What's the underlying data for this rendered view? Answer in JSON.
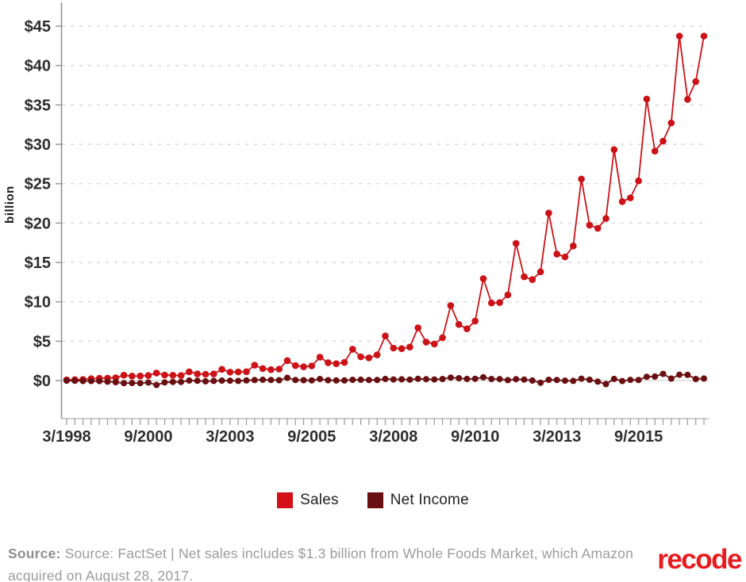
{
  "chart": {
    "y_axis": {
      "label": "billion",
      "tick_values": [
        0,
        5,
        10,
        15,
        20,
        25,
        30,
        35,
        40,
        45
      ],
      "tick_labels": [
        "$0",
        "$5",
        "$10",
        "$15",
        "$20",
        "$25",
        "$30",
        "$35",
        "$40",
        "$45"
      ]
    },
    "x_axis": {
      "shown_tick_labels": [
        "3/1998",
        "9/2000",
        "3/2003",
        "9/2005",
        "3/2008",
        "9/2010",
        "3/2013",
        "9/2015"
      ],
      "label_every_n_quarters": 10
    },
    "colors": {
      "grid": "#d9d9d9",
      "zero_line": "#cfcfcf",
      "axis": "#8c8c8c",
      "tick": "#999999",
      "tick_text": "#2d2d2d"
    }
  },
  "chart_data": {
    "type": "line",
    "title": "",
    "xlabel": "",
    "ylabel": "billion",
    "ylim": [
      0,
      45
    ],
    "grid": "dashed horizontal",
    "legend_position": "bottom",
    "x": [
      "3/1998",
      "6/1998",
      "9/1998",
      "12/1998",
      "3/1999",
      "6/1999",
      "9/1999",
      "12/1999",
      "3/2000",
      "6/2000",
      "9/2000",
      "12/2000",
      "3/2001",
      "6/2001",
      "9/2001",
      "12/2001",
      "3/2002",
      "6/2002",
      "9/2002",
      "12/2002",
      "3/2003",
      "6/2003",
      "9/2003",
      "12/2003",
      "3/2004",
      "6/2004",
      "9/2004",
      "12/2004",
      "3/2005",
      "6/2005",
      "9/2005",
      "12/2005",
      "3/2006",
      "6/2006",
      "9/2006",
      "12/2006",
      "3/2007",
      "6/2007",
      "9/2007",
      "12/2007",
      "3/2008",
      "6/2008",
      "9/2008",
      "12/2008",
      "3/2009",
      "6/2009",
      "9/2009",
      "12/2009",
      "3/2010",
      "6/2010",
      "9/2010",
      "12/2010",
      "3/2011",
      "6/2011",
      "9/2011",
      "12/2011",
      "3/2012",
      "6/2012",
      "9/2012",
      "12/2012",
      "3/2013",
      "6/2013",
      "9/2013",
      "12/2013",
      "3/2014",
      "6/2014",
      "9/2014",
      "12/2014",
      "3/2015",
      "6/2015",
      "9/2015",
      "12/2015",
      "3/2016",
      "6/2016",
      "9/2016",
      "12/2016",
      "3/2017",
      "6/2017",
      "9/2017"
    ],
    "series": [
      {
        "name": "Sales",
        "color": "#cc1217",
        "marker_radius": 4.3,
        "values": [
          0.09,
          0.12,
          0.15,
          0.25,
          0.29,
          0.31,
          0.36,
          0.68,
          0.57,
          0.58,
          0.64,
          0.97,
          0.7,
          0.67,
          0.64,
          1.12,
          0.85,
          0.81,
          0.85,
          1.43,
          1.08,
          1.1,
          1.13,
          1.95,
          1.53,
          1.39,
          1.46,
          2.54,
          1.9,
          1.75,
          1.86,
          2.98,
          2.28,
          2.14,
          2.31,
          3.99,
          3.02,
          2.89,
          3.26,
          5.67,
          4.13,
          4.06,
          4.26,
          6.7,
          4.89,
          4.65,
          5.45,
          9.52,
          7.13,
          6.57,
          7.56,
          12.95,
          9.86,
          9.91,
          10.88,
          17.43,
          13.18,
          12.83,
          13.81,
          21.27,
          16.07,
          15.7,
          17.09,
          25.59,
          19.74,
          19.34,
          20.58,
          29.33,
          22.72,
          23.19,
          25.36,
          35.75,
          29.13,
          30.4,
          32.71,
          43.74,
          35.71,
          37.96,
          43.74
        ]
      },
      {
        "name": "Net Income",
        "color": "#690f12",
        "marker_radius": 4.0,
        "values": [
          -0.01,
          -0.02,
          -0.05,
          -0.05,
          -0.06,
          -0.14,
          -0.2,
          -0.32,
          -0.31,
          -0.32,
          -0.24,
          -0.55,
          -0.23,
          -0.17,
          -0.17,
          0.01,
          -0.02,
          -0.09,
          -0.04,
          0.0,
          -0.01,
          -0.04,
          0.02,
          0.07,
          0.11,
          0.08,
          0.05,
          0.35,
          0.08,
          0.05,
          0.03,
          0.2,
          0.05,
          0.02,
          0.02,
          0.1,
          0.11,
          0.08,
          0.08,
          0.21,
          0.14,
          0.16,
          0.12,
          0.23,
          0.18,
          0.14,
          0.2,
          0.38,
          0.3,
          0.21,
          0.23,
          0.42,
          0.2,
          0.19,
          0.06,
          0.18,
          0.13,
          0.01,
          -0.27,
          0.1,
          0.08,
          -0.01,
          -0.04,
          0.24,
          0.11,
          -0.13,
          -0.44,
          0.21,
          -0.06,
          0.09,
          0.08,
          0.48,
          0.51,
          0.86,
          0.25,
          0.75,
          0.72,
          0.2,
          0.26
        ]
      }
    ]
  },
  "legend": {
    "items": [
      {
        "label": "Sales",
        "color": "#d30f17"
      },
      {
        "label": "Net Income",
        "color": "#690e11"
      }
    ]
  },
  "footer": {
    "source_prefix": "Source:",
    "source_text": "Source: FactSet | Net sales includes $1.3 billion from Whole Foods Market, which Amazon acquired on August 28, 2017.",
    "logo_text": "recode",
    "logo_color": "#e81b1f"
  }
}
